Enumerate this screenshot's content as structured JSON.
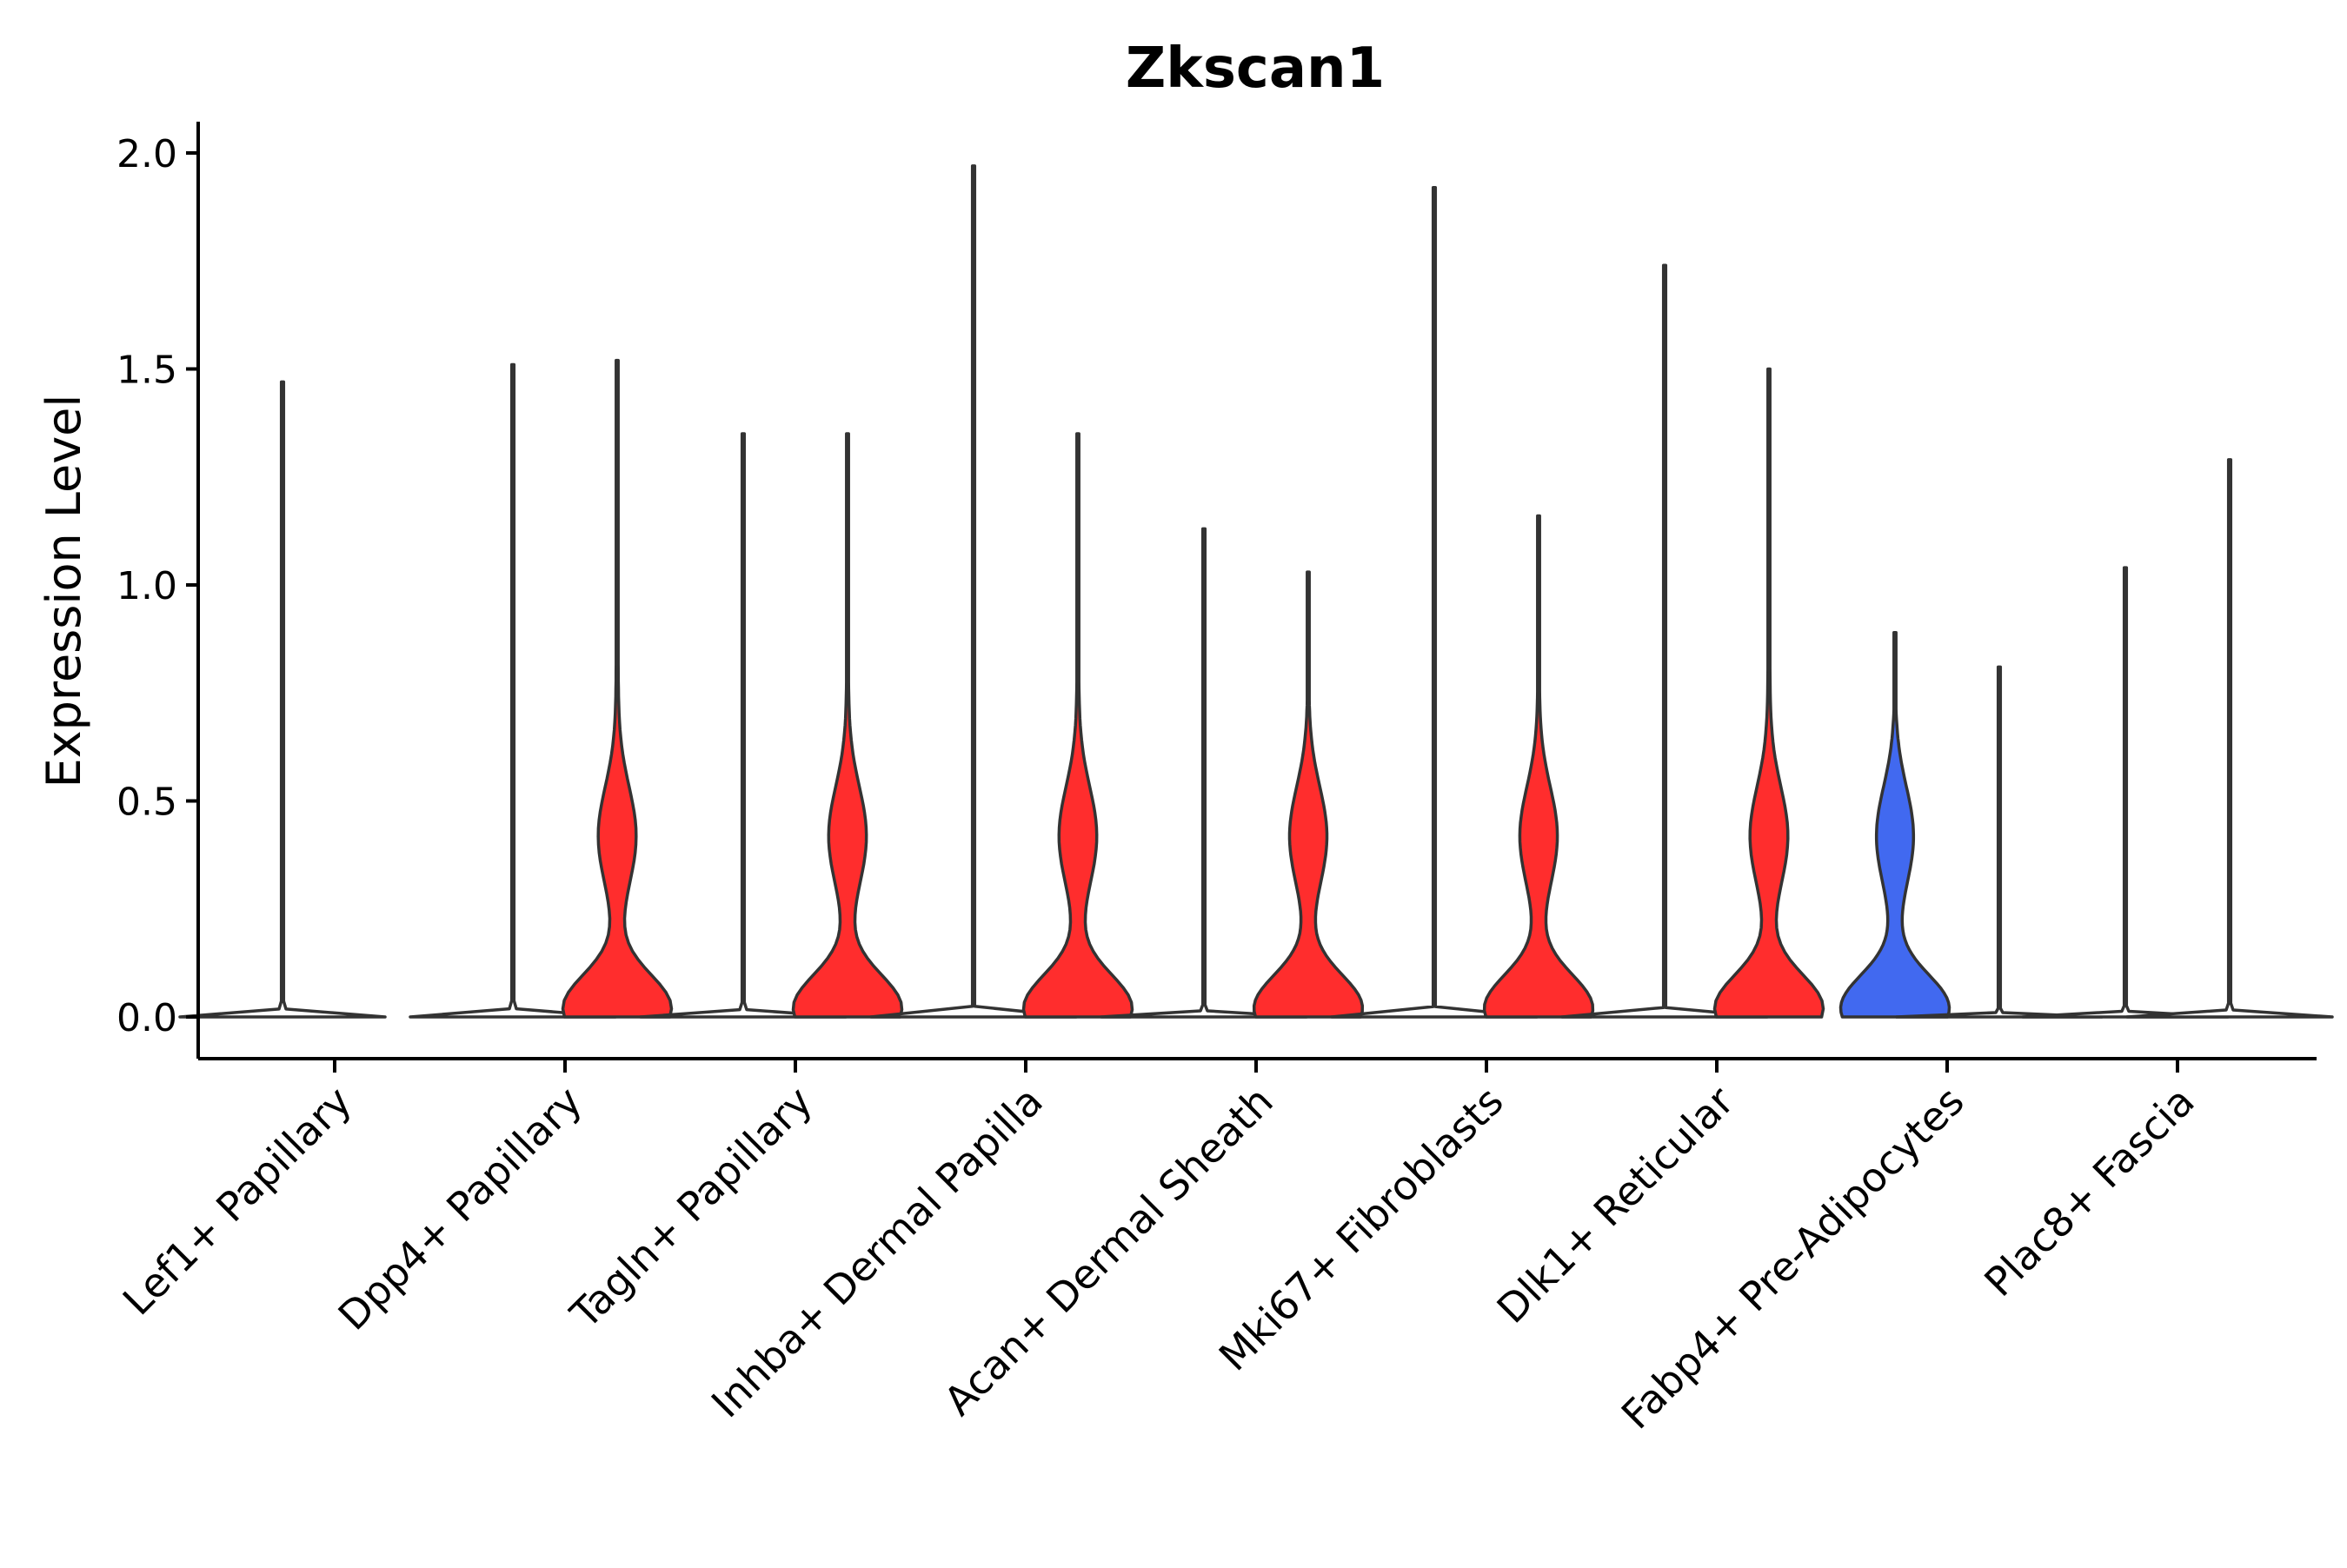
{
  "chart_data": {
    "type": "violin",
    "title": "Zkscan1",
    "xlabel": "",
    "ylabel": "Expression Level",
    "ylim": [
      -0.1,
      2.07
    ],
    "yticks": [
      {
        "value": 0.0,
        "label": "0.0"
      },
      {
        "value": 0.5,
        "label": "0.5"
      },
      {
        "value": 1.0,
        "label": "1.0"
      },
      {
        "value": 1.5,
        "label": "1.5"
      },
      {
        "value": 2.0,
        "label": "2.0"
      }
    ],
    "categories": [
      "Lef1+ Papillary",
      "Dpp4+ Papillary",
      "Tagln+ Papillary",
      "Inhba+ Dermal Papilla",
      "Acan+ Dermal Sheath",
      "Mki67+ Fibroblasts",
      "Dlk1+ Reticular",
      "Fabp4+ Pre-Adipocytes",
      "Plac8+ Fascia"
    ],
    "colors": {
      "high": "#ff2d2d",
      "low": "#4169f0",
      "neutral": "#ffffff",
      "outline": "#333333"
    },
    "series": [
      {
        "name": "group_1",
        "values": [
          {
            "category": "Lef1+ Papillary",
            "max": 1.47,
            "fill": "#ffffff"
          },
          {
            "category": "Dpp4+ Papillary",
            "max": 1.51,
            "fill": "#ffffff"
          },
          {
            "category": "Tagln+ Papillary",
            "max": 1.35,
            "fill": "#ffffff"
          },
          {
            "category": "Inhba+ Dermal Papilla",
            "max": 1.97,
            "fill": "#ffffff"
          },
          {
            "category": "Acan+ Dermal Sheath",
            "max": 1.13,
            "fill": "#ffffff"
          },
          {
            "category": "Mki67+ Fibroblasts",
            "max": 1.92,
            "fill": "#ffffff"
          },
          {
            "category": "Dlk1+ Reticular",
            "max": 1.74,
            "fill": "#ffffff"
          },
          {
            "category": "Fabp4+ Pre-Adipocytes",
            "max": 0.89,
            "fill": "#4169f0"
          },
          {
            "category": "Plac8+ Fascia",
            "max": 1.04,
            "fill": "#ffffff"
          }
        ]
      },
      {
        "name": "group_2",
        "values": [
          {
            "category": "Lef1+ Papillary",
            "max": null,
            "fill": "#ffffff"
          },
          {
            "category": "Dpp4+ Papillary",
            "max": 1.52,
            "fill": "#ff2d2d"
          },
          {
            "category": "Tagln+ Papillary",
            "max": 1.35,
            "fill": "#ff2d2d"
          },
          {
            "category": "Inhba+ Dermal Papilla",
            "max": 1.35,
            "fill": "#ff2d2d"
          },
          {
            "category": "Acan+ Dermal Sheath",
            "max": 1.03,
            "fill": "#ff2d2d"
          },
          {
            "category": "Mki67+ Fibroblasts",
            "max": 1.16,
            "fill": "#ff2d2d"
          },
          {
            "category": "Dlk1+ Reticular",
            "max": 1.5,
            "fill": "#ff2d2d"
          },
          {
            "category": "Fabp4+ Pre-Adipocytes",
            "max": 0.81,
            "fill": "#ffffff"
          },
          {
            "category": "Plac8+ Fascia",
            "max": 1.29,
            "fill": "#ffffff"
          }
        ]
      }
    ]
  }
}
